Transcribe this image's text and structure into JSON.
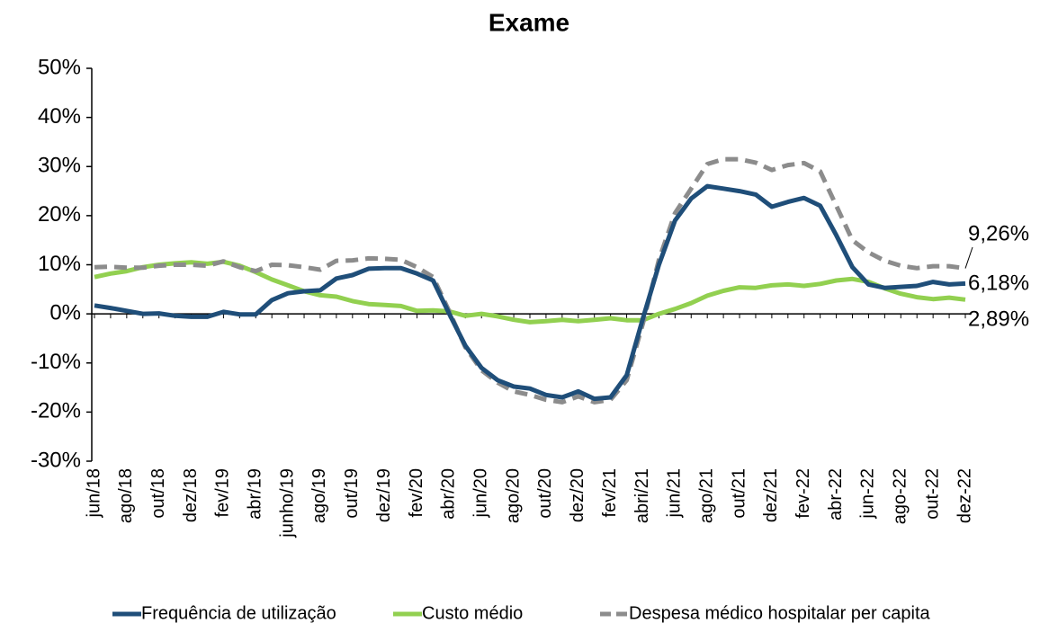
{
  "chart_data": {
    "type": "line",
    "title": "Exame",
    "categories": [
      "jun/18",
      null,
      "ago/18",
      null,
      "out/18",
      null,
      "dez/18",
      null,
      "fev/19",
      null,
      "abr/19",
      null,
      "junho/19",
      null,
      "ago/19",
      null,
      "out/19",
      null,
      "dez/19",
      null,
      "fev/20",
      null,
      "abr/20",
      null,
      "jun/20",
      null,
      "ago/20",
      null,
      "out/20",
      null,
      "dez/20",
      null,
      "fev/21",
      null,
      "abri/21",
      null,
      "jun/21",
      null,
      "ago/21",
      null,
      "out/21",
      null,
      "dez/21",
      null,
      "fev-22",
      null,
      "abr-22",
      null,
      "jun-22",
      null,
      "ago-22",
      null,
      "out-22",
      null,
      "dez-22"
    ],
    "series": [
      {
        "name": "Frequência de utilização",
        "color": "#1f4e79",
        "dash": false,
        "values": [
          1.7,
          1.2,
          0.6,
          0,
          0.1,
          -0.4,
          -0.6,
          -0.6,
          0.4,
          -0.1,
          -0.1,
          2.8,
          4.2,
          4.6,
          4.8,
          7.2,
          7.9,
          9.2,
          9.3,
          9.3,
          8.2,
          6.8,
          0,
          -6.5,
          -11,
          -13.5,
          -14.8,
          -15.2,
          -16.5,
          -17,
          -15.8,
          -17.3,
          -17,
          -12.5,
          -1,
          10,
          19,
          23.5,
          26,
          25.5,
          25,
          24.3,
          21.8,
          22.8,
          23.6,
          22,
          16,
          9.5,
          6,
          5.3,
          5.5,
          5.7,
          6.5,
          6,
          6.18
        ],
        "value_labels": [
          null,
          null,
          null,
          null,
          null,
          null,
          null,
          null,
          null,
          null,
          null,
          null,
          null,
          null,
          null,
          null,
          null,
          null,
          null,
          null,
          null,
          null,
          null,
          null,
          null,
          null,
          null,
          null,
          null,
          null,
          null,
          null,
          null,
          null,
          null,
          null,
          null,
          null,
          null,
          null,
          null,
          null,
          null,
          null,
          null,
          null,
          null,
          null,
          null,
          null,
          null,
          null,
          null,
          null,
          "6,18%"
        ]
      },
      {
        "name": "Custo médio",
        "color": "#92d050",
        "dash": false,
        "values": [
          7.5,
          8.2,
          8.7,
          9.5,
          10,
          10.3,
          10.5,
          10.2,
          10.6,
          9.8,
          8.5,
          7,
          5.8,
          4.6,
          3.8,
          3.5,
          2.6,
          2,
          1.8,
          1.6,
          0.6,
          0.7,
          0.5,
          -0.4,
          0,
          -0.5,
          -1.2,
          -1.7,
          -1.5,
          -1.2,
          -1.5,
          -1.2,
          -0.9,
          -1.3,
          -1.3,
          0,
          1,
          2.2,
          3.7,
          4.7,
          5.4,
          5.3,
          5.8,
          6,
          5.7,
          6.1,
          6.8,
          7.1,
          6.5,
          5.2,
          4.1,
          3.4,
          3,
          3.3,
          2.89
        ],
        "value_labels": [
          null,
          null,
          null,
          null,
          null,
          null,
          null,
          null,
          null,
          null,
          null,
          null,
          null,
          null,
          null,
          null,
          null,
          null,
          null,
          null,
          null,
          null,
          null,
          null,
          null,
          null,
          null,
          null,
          null,
          null,
          null,
          null,
          null,
          null,
          null,
          null,
          null,
          null,
          null,
          null,
          null,
          null,
          null,
          null,
          null,
          null,
          null,
          null,
          null,
          null,
          null,
          null,
          null,
          null,
          "2,89%"
        ]
      },
      {
        "name": "Despesa médico hospitalar per capita",
        "color": "#8c8c8c",
        "dash": true,
        "values": [
          9.5,
          9.6,
          9.4,
          9.4,
          9.8,
          10,
          10,
          9.8,
          10.7,
          9.5,
          8.7,
          10,
          9.9,
          9.5,
          9,
          10.8,
          10.9,
          11.3,
          11.2,
          11,
          9.5,
          7.5,
          0.5,
          -6.8,
          -11.5,
          -14,
          -15.8,
          -16.5,
          -17.5,
          -18,
          -16.8,
          -18,
          -17.5,
          -13.5,
          -2,
          11,
          20.5,
          25.5,
          30.5,
          31.5,
          31.5,
          30.8,
          29.3,
          30.3,
          30.7,
          29,
          22,
          15,
          12.5,
          10.8,
          9.8,
          9.3,
          9.7,
          9.7,
          9.26
        ],
        "value_labels": [
          null,
          null,
          null,
          null,
          null,
          null,
          null,
          null,
          null,
          null,
          null,
          null,
          null,
          null,
          null,
          null,
          null,
          null,
          null,
          null,
          null,
          null,
          null,
          null,
          null,
          null,
          null,
          null,
          null,
          null,
          null,
          null,
          null,
          null,
          null,
          null,
          null,
          null,
          null,
          null,
          null,
          null,
          null,
          null,
          null,
          null,
          null,
          null,
          null,
          null,
          null,
          null,
          null,
          null,
          "9,26%"
        ]
      }
    ],
    "ylim": [
      -30,
      50
    ],
    "yticks": [
      {
        "value": -30,
        "label": "-30%"
      },
      {
        "value": -20,
        "label": "-20%"
      },
      {
        "value": -10,
        "label": "-10%"
      },
      {
        "value": 0,
        "label": "0%"
      },
      {
        "value": 10,
        "label": "10%"
      },
      {
        "value": 20,
        "label": "20%"
      },
      {
        "value": 30,
        "label": "30%"
      },
      {
        "value": 40,
        "label": "40%"
      },
      {
        "value": 50,
        "label": "50%"
      }
    ],
    "legend": "bottom"
  }
}
